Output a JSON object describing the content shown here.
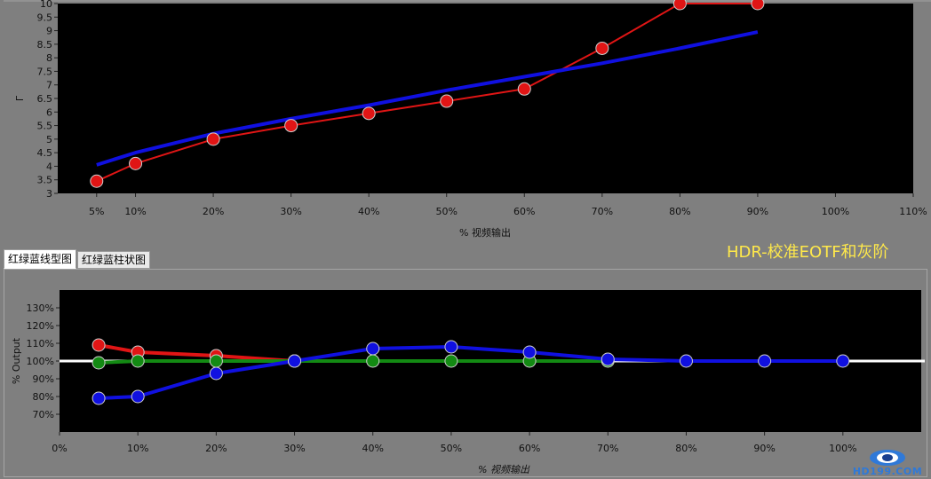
{
  "overlay_title": "HDR-校准EOTF和灰阶",
  "watermark": "HD199.COM",
  "tabs": [
    {
      "label": "红绿蓝线型图",
      "active": true
    },
    {
      "label": "红绿蓝柱状图",
      "active": false
    }
  ],
  "chart_data": [
    {
      "type": "line",
      "title": "",
      "xlabel": "% 视频输出",
      "ylabel": "Γ",
      "xlim": [
        0,
        110
      ],
      "ylim": [
        3,
        10
      ],
      "x_ticks": [
        5,
        10,
        20,
        30,
        40,
        50,
        60,
        70,
        80,
        90,
        100,
        110
      ],
      "x_tick_labels": [
        "5%",
        "10%",
        "20%",
        "30%",
        "40%",
        "50%",
        "60%",
        "70%",
        "80%",
        "90%",
        "100%",
        "110%"
      ],
      "y_ticks": [
        3,
        3.5,
        4,
        4.5,
        5,
        5.5,
        6,
        6.5,
        7,
        7.5,
        8,
        8.5,
        9,
        9.5,
        10
      ],
      "y_tick_labels": [
        "3",
        "3.5",
        "4",
        "4.5",
        "5",
        "5.5",
        "6",
        "6.5",
        "7",
        "7.5",
        "8",
        "8.5",
        "9",
        "9.5",
        "10"
      ],
      "grid": false,
      "series": [
        {
          "color": "#e01515",
          "markers": true,
          "x": [
            5,
            10,
            20,
            30,
            40,
            50,
            60,
            70,
            80,
            90
          ],
          "values": [
            3.45,
            4.1,
            5.0,
            5.5,
            5.95,
            6.4,
            6.85,
            8.35,
            10.0,
            10.0
          ]
        },
        {
          "color": "#1010e0",
          "markers": false,
          "x": [
            5,
            10,
            20,
            30,
            40,
            50,
            60,
            70,
            80,
            90
          ],
          "values": [
            4.05,
            4.5,
            5.2,
            5.75,
            6.25,
            6.8,
            7.3,
            7.8,
            8.35,
            8.95
          ]
        }
      ]
    },
    {
      "type": "line",
      "title": "",
      "xlabel": "% 视频输出",
      "ylabel": "% Output",
      "xlim": [
        0,
        110
      ],
      "ylim": [
        60,
        140
      ],
      "x_ticks": [
        0,
        10,
        20,
        30,
        40,
        50,
        60,
        70,
        80,
        90,
        100
      ],
      "x_tick_labels": [
        "0%",
        "10%",
        "20%",
        "30%",
        "40%",
        "50%",
        "60%",
        "70%",
        "80%",
        "90%",
        "100%"
      ],
      "y_ticks": [
        70,
        80,
        90,
        100,
        110,
        120,
        130
      ],
      "y_tick_labels": [
        "70%",
        "80%",
        "90%",
        "100%",
        "110%",
        "120%",
        "130%"
      ],
      "grid": false,
      "reference_line": {
        "value": 100,
        "color": "#ffffff"
      },
      "series": [
        {
          "color": "#e01515",
          "markers": true,
          "x": [
            5,
            10,
            20,
            30
          ],
          "values": [
            109,
            105,
            103,
            100
          ]
        },
        {
          "color": "#138a13",
          "markers": true,
          "x": [
            5,
            10,
            20,
            30,
            40,
            50,
            60,
            70
          ],
          "values": [
            99,
            100,
            100,
            100,
            100,
            100,
            100,
            100
          ]
        },
        {
          "color": "#1010e0",
          "markers": true,
          "x": [
            5,
            10,
            20,
            30,
            40,
            50,
            60,
            70,
            80,
            90,
            100
          ],
          "values": [
            79,
            80,
            93,
            100,
            107,
            108,
            105,
            101,
            100,
            100,
            100
          ]
        }
      ]
    }
  ]
}
